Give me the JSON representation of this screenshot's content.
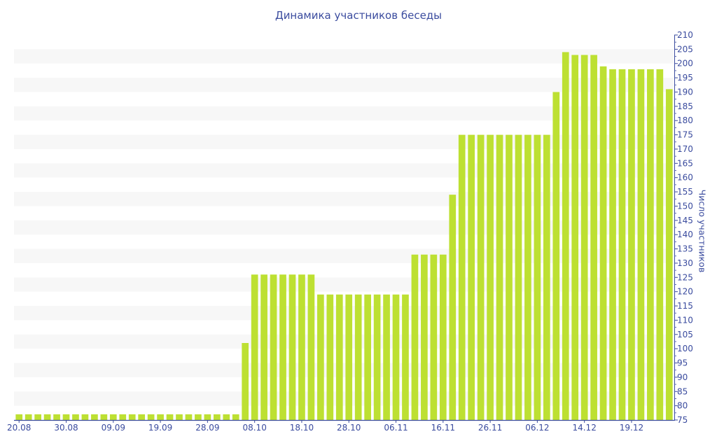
{
  "chart_data": {
    "type": "bar",
    "title": "Динамика участников беседы",
    "xlabel": "",
    "ylabel": "Число участников",
    "ylim": [
      75,
      210
    ],
    "y_ticks": [
      75,
      80,
      85,
      90,
      95,
      100,
      105,
      110,
      115,
      120,
      125,
      130,
      135,
      140,
      145,
      150,
      155,
      160,
      165,
      170,
      175,
      180,
      185,
      190,
      195,
      200,
      205,
      210
    ],
    "x_tick_labels": [
      {
        "index": 0,
        "label": "20.08"
      },
      {
        "index": 5,
        "label": "30.08"
      },
      {
        "index": 10,
        "label": "09.09"
      },
      {
        "index": 15,
        "label": "19.09"
      },
      {
        "index": 20,
        "label": "28.09"
      },
      {
        "index": 25,
        "label": "08.10"
      },
      {
        "index": 30,
        "label": "18.10"
      },
      {
        "index": 35,
        "label": "28.10"
      },
      {
        "index": 40,
        "label": "06.11"
      },
      {
        "index": 45,
        "label": "16.11"
      },
      {
        "index": 50,
        "label": "26.11"
      },
      {
        "index": 55,
        "label": "06.12"
      },
      {
        "index": 60,
        "label": "14.12"
      },
      {
        "index": 65,
        "label": "19.12"
      }
    ],
    "values": [
      77,
      77,
      77,
      77,
      77,
      77,
      77,
      77,
      77,
      77,
      77,
      77,
      77,
      77,
      77,
      77,
      77,
      77,
      77,
      77,
      77,
      77,
      77,
      77,
      102,
      126,
      126,
      126,
      126,
      126,
      126,
      126,
      119,
      119,
      119,
      119,
      119,
      119,
      119,
      119,
      119,
      119,
      133,
      133,
      133,
      133,
      154,
      175,
      175,
      175,
      175,
      175,
      175,
      175,
      175,
      175,
      175,
      190,
      204,
      203,
      203,
      203,
      199,
      198,
      198,
      198,
      198,
      198,
      198,
      191
    ],
    "grid": "alternating horizontal bands",
    "colors": {
      "bar": "#bde032",
      "axis": "#3a4b9e",
      "band": "#f7f7f7"
    }
  }
}
